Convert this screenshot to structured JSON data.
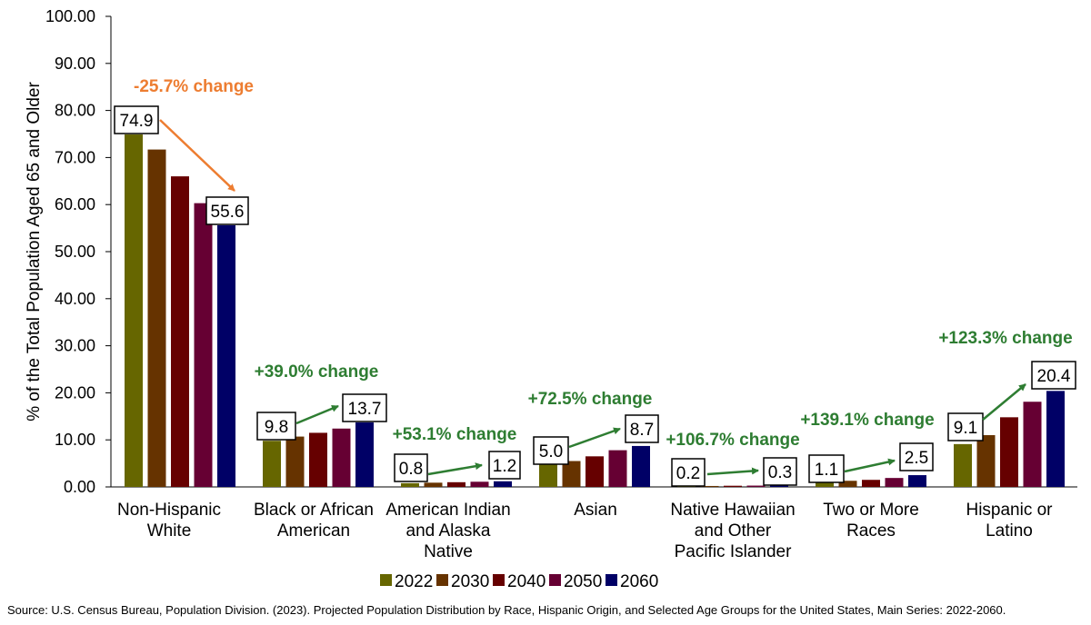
{
  "chart_data": {
    "type": "bar",
    "ylabel": "% of the Total Population Aged 65 and Older",
    "ylim": [
      0,
      100
    ],
    "yticks": [
      "0.00",
      "10.00",
      "20.00",
      "30.00",
      "40.00",
      "50.00",
      "60.00",
      "70.00",
      "80.00",
      "90.00",
      "100.00"
    ],
    "categories": [
      [
        "Non-Hispanic",
        "White"
      ],
      [
        "Black or African",
        "American"
      ],
      [
        "American Indian",
        "and Alaska",
        "Native"
      ],
      [
        "Asian"
      ],
      [
        "Native Hawaiian",
        "and Other",
        "Pacific Islander"
      ],
      [
        "Two or More",
        "Races"
      ],
      [
        "Hispanic or",
        "Latino"
      ]
    ],
    "series": [
      {
        "name": "2022",
        "color": "#666600",
        "values": [
          74.9,
          9.8,
          0.8,
          5.0,
          0.2,
          1.1,
          9.1
        ]
      },
      {
        "name": "2030",
        "color": "#663300",
        "values": [
          71.7,
          10.7,
          0.9,
          5.5,
          0.2,
          1.3,
          11.0
        ]
      },
      {
        "name": "2040",
        "color": "#660000",
        "values": [
          66.0,
          11.5,
          1.0,
          6.5,
          0.25,
          1.5,
          14.8
        ]
      },
      {
        "name": "2050",
        "color": "#660033",
        "values": [
          60.3,
          12.4,
          1.1,
          7.8,
          0.28,
          1.9,
          18.1
        ]
      },
      {
        "name": "2060",
        "color": "#000066",
        "values": [
          55.6,
          13.7,
          1.2,
          8.7,
          0.3,
          2.5,
          20.4
        ]
      }
    ],
    "value_labels": {
      "start": [
        "74.9",
        "9.8",
        "0.8",
        "5.0",
        "0.2",
        "1.1",
        "9.1"
      ],
      "end": [
        "55.6",
        "13.7",
        "1.2",
        "8.7",
        "0.3",
        "2.5",
        "20.4"
      ]
    },
    "annotations": [
      {
        "text": "-25.7% change",
        "color": "#ed7d31"
      },
      {
        "text": "+39.0% change",
        "color": "#2e7d32"
      },
      {
        "text": "+53.1% change",
        "color": "#2e7d32"
      },
      {
        "text": "+72.5% change",
        "color": "#2e7d32"
      },
      {
        "text": "+106.7% change",
        "color": "#2e7d32"
      },
      {
        "text": "+139.1% change",
        "color": "#2e7d32"
      },
      {
        "text": "+123.3% change",
        "color": "#2e7d32"
      }
    ],
    "legend_position": "bottom",
    "grid": false
  },
  "source": "Source: U.S. Census Bureau, Population Division. (2023). Projected Population Distribution by Race, Hispanic Origin, and Selected Age Groups for the United States, Main Series: 2022-2060."
}
